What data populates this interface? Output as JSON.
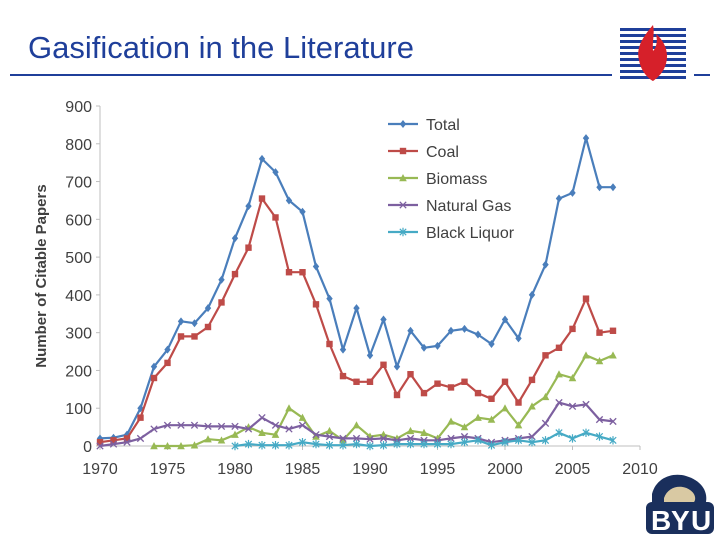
{
  "slide": {
    "title": "Gasification in the Literature"
  },
  "colors": {
    "title": "#1f3f9a",
    "total": "#4a7ebb",
    "coal": "#be4b48",
    "biomass": "#98b954",
    "natural_gas": "#7d60a0",
    "black_liquor": "#46aac5",
    "logo_red": "#d6202a",
    "logo_blue": "#1f3f9a",
    "byu_navy": "#1a2f5c"
  },
  "icons": {
    "logo": "flame-logo-icon",
    "mascot": "byu-cougar-logo-icon"
  },
  "chart_data": {
    "type": "line",
    "title": "",
    "xlabel": "",
    "ylabel": "Number of Citable Papers",
    "xlim": [
      1970,
      2010
    ],
    "ylim": [
      0,
      900
    ],
    "x_ticks": [
      "1970",
      "1975",
      "1980",
      "1985",
      "1990",
      "1995",
      "2000",
      "2005",
      "2010"
    ],
    "y_ticks": [
      "0",
      "100",
      "200",
      "300",
      "400",
      "500",
      "600",
      "700",
      "800",
      "900"
    ],
    "grid": false,
    "legend_position": "top-right",
    "x": [
      1970,
      1971,
      1972,
      1973,
      1974,
      1975,
      1976,
      1977,
      1978,
      1979,
      1980,
      1981,
      1982,
      1983,
      1984,
      1985,
      1986,
      1987,
      1988,
      1989,
      1990,
      1991,
      1992,
      1993,
      1994,
      1995,
      1996,
      1997,
      1998,
      1999,
      2000,
      2001,
      2002,
      2003,
      2004,
      2005,
      2006,
      2007,
      2008
    ],
    "series": [
      {
        "name": "Total",
        "marker": "diamond",
        "colorKey": "total",
        "values": [
          20,
          22,
          30,
          100,
          210,
          255,
          330,
          325,
          365,
          440,
          550,
          635,
          760,
          725,
          650,
          620,
          475,
          390,
          255,
          365,
          240,
          335,
          210,
          305,
          260,
          265,
          305,
          310,
          295,
          270,
          335,
          285,
          400,
          480,
          655,
          670,
          815,
          685,
          685
        ]
      },
      {
        "name": "Coal",
        "marker": "square",
        "colorKey": "coal",
        "values": [
          10,
          15,
          20,
          75,
          180,
          220,
          290,
          290,
          315,
          380,
          455,
          525,
          655,
          605,
          460,
          460,
          375,
          270,
          185,
          170,
          170,
          215,
          135,
          190,
          140,
          165,
          155,
          170,
          140,
          125,
          170,
          115,
          175,
          240,
          260,
          310,
          390,
          300,
          305
        ]
      },
      {
        "name": "Biomass",
        "marker": "triangle",
        "colorKey": "biomass",
        "values": [
          null,
          null,
          null,
          null,
          0,
          0,
          0,
          2,
          18,
          15,
          30,
          50,
          35,
          30,
          100,
          75,
          25,
          40,
          15,
          55,
          25,
          30,
          20,
          40,
          35,
          20,
          65,
          50,
          75,
          70,
          100,
          55,
          105,
          130,
          190,
          180,
          240,
          225,
          240
        ]
      },
      {
        "name": "Natural Gas",
        "marker": "x",
        "colorKey": "natural_gas",
        "values": [
          0,
          5,
          10,
          20,
          45,
          55,
          55,
          55,
          52,
          52,
          52,
          45,
          75,
          55,
          45,
          55,
          30,
          25,
          20,
          20,
          18,
          20,
          15,
          20,
          15,
          15,
          20,
          25,
          20,
          10,
          15,
          20,
          25,
          60,
          115,
          105,
          110,
          70,
          65
        ]
      },
      {
        "name": "Black Liquor",
        "marker": "star",
        "colorKey": "black_liquor",
        "values": [
          null,
          null,
          null,
          null,
          null,
          null,
          null,
          null,
          null,
          null,
          0,
          5,
          2,
          2,
          2,
          10,
          5,
          2,
          2,
          5,
          0,
          2,
          5,
          5,
          5,
          5,
          5,
          10,
          15,
          2,
          10,
          15,
          10,
          15,
          35,
          20,
          35,
          25,
          15
        ]
      }
    ]
  }
}
